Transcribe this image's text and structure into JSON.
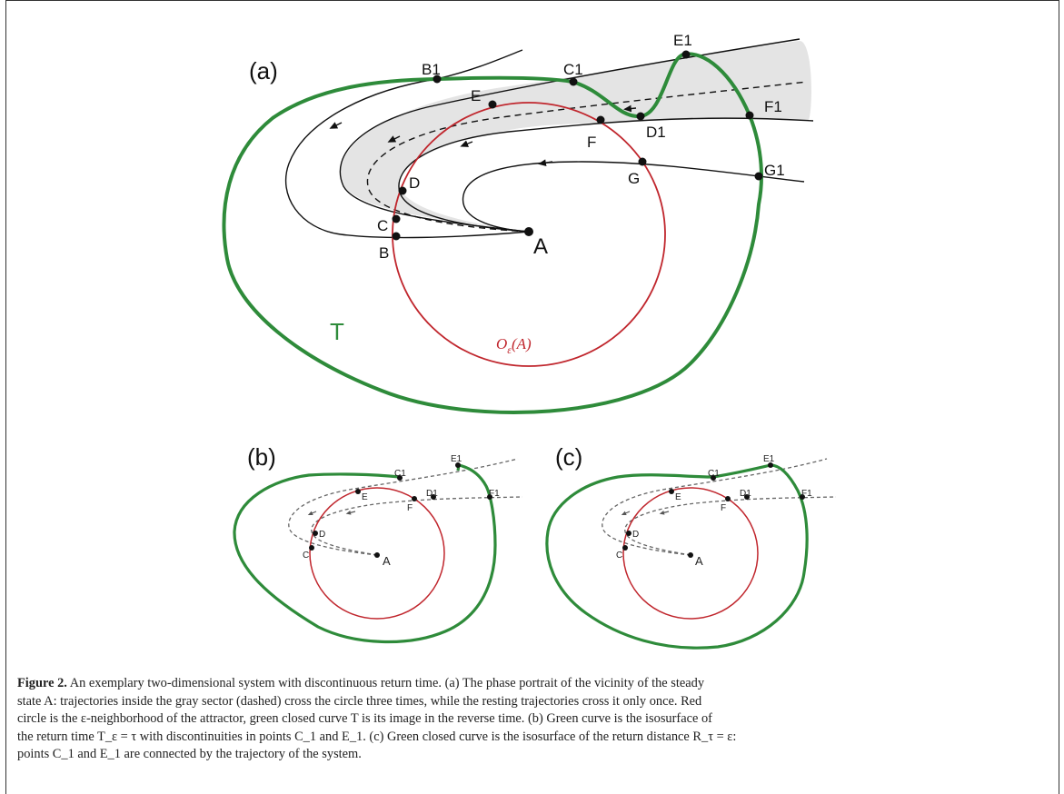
{
  "figure": {
    "panels": {
      "a": "(a)",
      "b": "(b)",
      "c": "(c)"
    },
    "points_a": {
      "A": "A",
      "B": "B",
      "C": "C",
      "D": "D",
      "E": "E",
      "F": "F",
      "G": "G",
      "B1": "B1",
      "C1": "C1",
      "D1": "D1",
      "E1": "E1",
      "F1": "F1",
      "G1": "G1"
    },
    "points_bc": {
      "A": "A",
      "C": "C",
      "D": "D",
      "E": "E",
      "F": "F",
      "C1": "C1",
      "D1": "D1",
      "E1": "E1",
      "F1": "F1"
    },
    "curve_label_T": "T",
    "circle_label_main": "O",
    "circle_label_sub": "ε",
    "circle_label_arg": "(A)",
    "colors": {
      "green": "#2e8b3a",
      "red": "#c0262d",
      "gray_fill": "#e3e3e3",
      "trajectory": "#111111"
    }
  },
  "caption": {
    "bold": "Figure 2.",
    "line1": "An exemplary two-dimensional system with discontinuous return time. (a) The phase portrait of the vicinity of the steady",
    "line2": "state A: trajectories inside the gray sector (dashed) cross the circle three times, while the resting trajectories cross it only once. Red",
    "line3": "circle is the ε-neighborhood of the attractor, green closed curve T is its image in the reverse time. (b) Green curve is the isosurface of",
    "line4": "the return time T_ε = τ with discontinuities in points C_1 and E_1. (c) Green closed curve is the isosurface of the return distance R_τ = ε:",
    "line5": "points C_1 and E_1 are connected by the trajectory of the system."
  }
}
